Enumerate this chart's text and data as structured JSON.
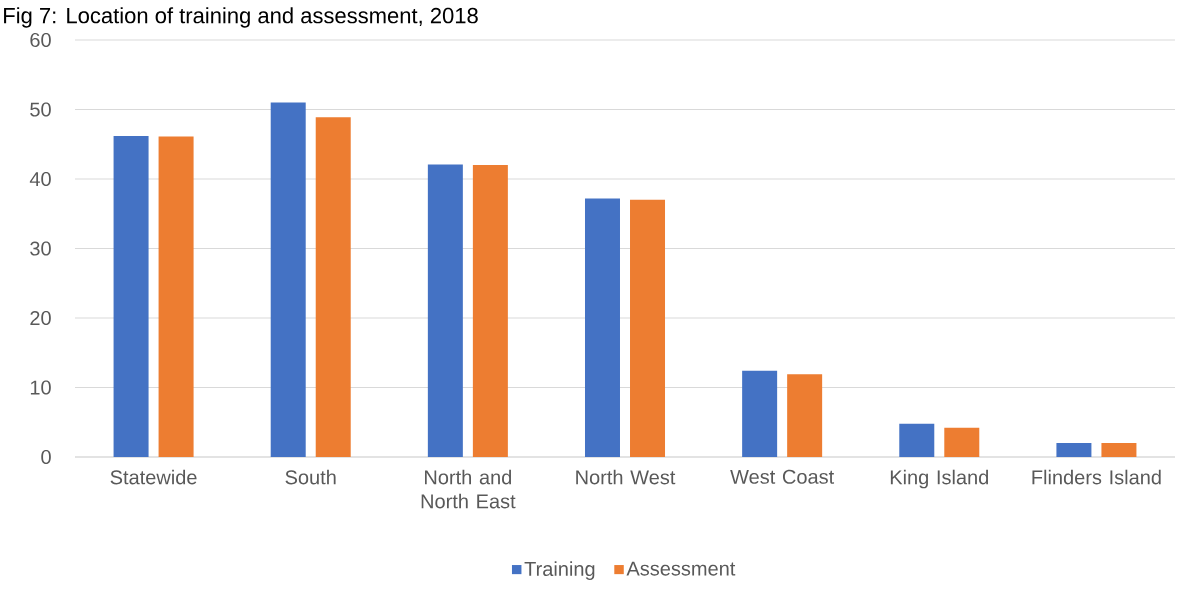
{
  "chart_data": {
    "type": "bar",
    "title": "Fig 7: Location of training and assessment, 2018",
    "categories": [
      "Statewide",
      "South",
      "North and North East",
      "North West",
      "West Coast",
      "King Island",
      "Flinders Island"
    ],
    "series": [
      {
        "name": "Training",
        "color": "#4472c4",
        "values": [
          46.2,
          51.0,
          42.1,
          37.2,
          12.4,
          4.8,
          2.0
        ]
      },
      {
        "name": "Assessment",
        "color": "#ed7d31",
        "values": [
          46.1,
          48.9,
          42.0,
          37.0,
          11.9,
          4.2,
          2.0
        ]
      }
    ],
    "ylim": [
      0,
      60
    ],
    "yticks": [
      0,
      10,
      20,
      30,
      40,
      50,
      60
    ],
    "grid": "y",
    "legend": "bottom"
  }
}
